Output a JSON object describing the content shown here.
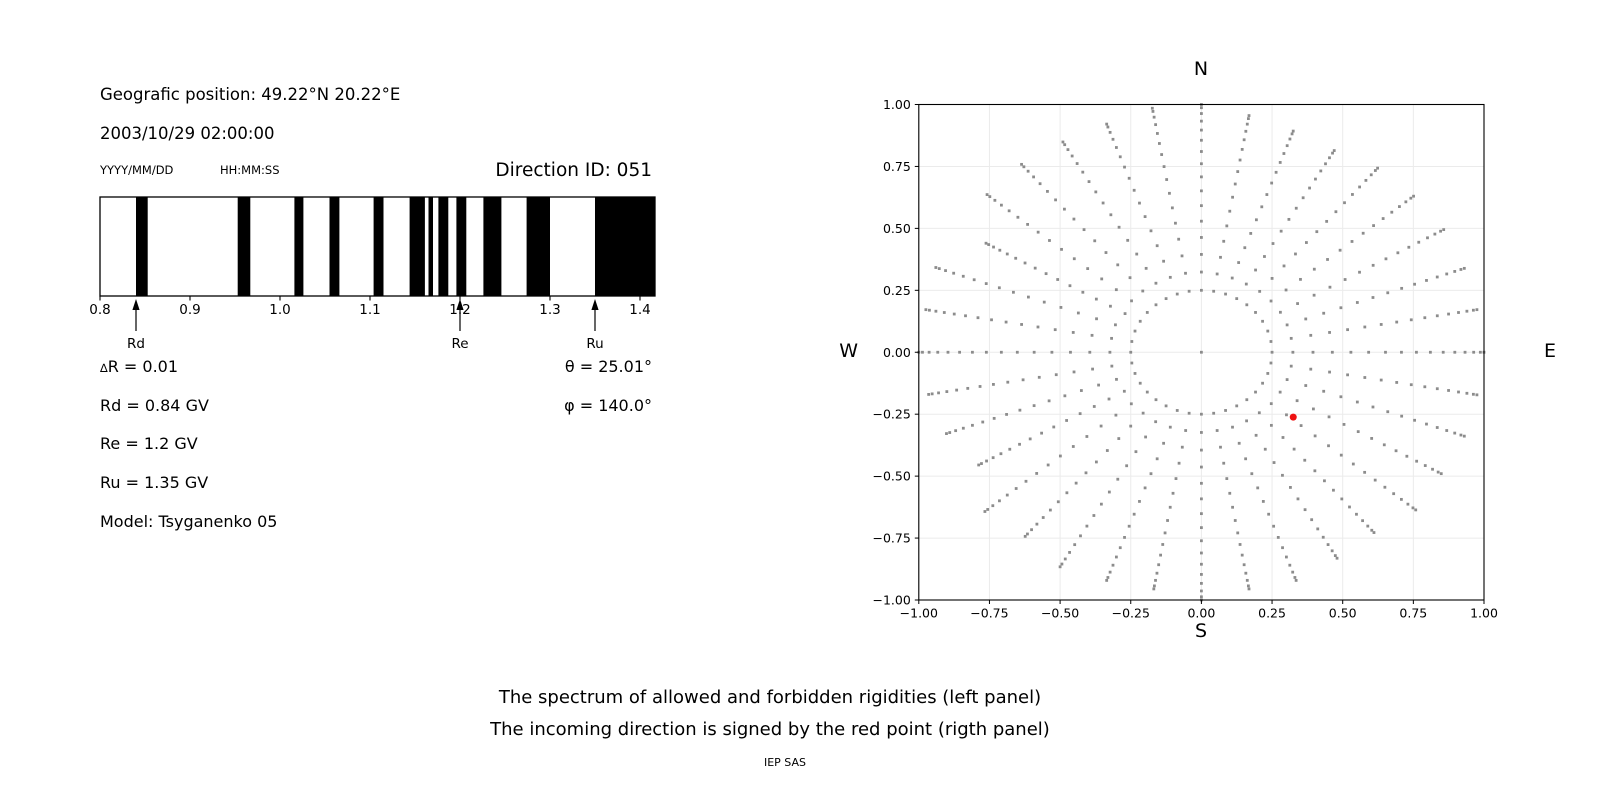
{
  "header": {
    "position_line": "Geografic position: 49.22°N 20.22°E",
    "datetime_line": "2003/10/29 02:00:00",
    "date_format_label": "YYYY/MM/DD",
    "time_format_label": "HH:MM:SS",
    "direction_id": "Direction ID: 051"
  },
  "annotations": {
    "delta_symbol": "∆",
    "delta_rest": "R = 0.01",
    "rd": "Rd = 0.84 GV",
    "re": "Re = 1.2 GV",
    "ru": "Ru = 1.35 GV",
    "model": "Model: Tsyganenko 05",
    "theta": "θ = 25.01°",
    "phi": "φ = 140.0°"
  },
  "caption": {
    "line1": "The spectrum of allowed and forbidden rigidities (left panel)",
    "line2": "The incoming direction is signed by the red point (rigth panel)",
    "footer": "IEP SAS"
  },
  "colors": {
    "marker_gray": "#8c8c8c",
    "red_point": "#ee1111",
    "grid": "#ebebeb",
    "band_black": "#000000",
    "axis_black": "#000000"
  },
  "chart_data": [
    {
      "type": "barcode",
      "title": "Direction ID: 051",
      "xlim": [
        0.8,
        1.41667
      ],
      "xticks": [
        0.8,
        0.9,
        1.0,
        1.1,
        1.2,
        1.3,
        1.4
      ],
      "allowed_bands": [
        [
          0.84,
          0.853
        ],
        [
          0.953,
          0.967
        ],
        [
          1.016,
          1.026
        ],
        [
          1.055,
          1.066
        ],
        [
          1.104,
          1.115
        ],
        [
          1.144,
          1.161
        ],
        [
          1.165,
          1.17
        ],
        [
          1.176,
          1.187
        ],
        [
          1.196,
          1.207
        ],
        [
          1.226,
          1.246
        ],
        [
          1.274,
          1.3
        ],
        [
          1.35,
          1.41667
        ]
      ],
      "markers": [
        {
          "label": "Rd",
          "value": 0.84
        },
        {
          "label": "Re",
          "value": 1.2
        },
        {
          "label": "Ru",
          "value": 1.35
        }
      ]
    },
    {
      "type": "scatter",
      "compass": {
        "top": "N",
        "bottom": "S",
        "left": "W",
        "right": "E"
      },
      "xlim": [
        -1.0,
        1.0
      ],
      "ylim": [
        -1.0,
        1.0
      ],
      "xticks": [
        -1.0,
        -0.75,
        -0.5,
        -0.25,
        0.0,
        0.25,
        0.5,
        0.75,
        1.0
      ],
      "yticks": [
        -1.0,
        -0.75,
        -0.5,
        -0.25,
        0.0,
        0.25,
        0.5,
        0.75,
        1.0
      ],
      "grid": true,
      "spokes": {
        "azimuth_step_deg": 10,
        "inner_radius": 0.25,
        "dots_per_spoke": 16,
        "clump_exponent": 1.5,
        "max_radii": [
          1.0,
          0.97,
          0.95,
          0.94,
          0.97,
          0.98,
          0.99,
          0.99,
          0.99,
          1.0,
          0.99,
          0.99,
          0.98,
          0.99,
          0.95,
          0.96,
          0.98,
          0.97,
          1.0,
          0.97,
          0.98,
          1.0,
          0.97,
          1.0,
          0.91,
          0.96,
          0.98,
          1.0,
          0.99,
          1.0,
          0.88,
          0.99,
          0.99,
          0.98,
          0.98,
          1.0
        ]
      },
      "center_dot": true,
      "red_point": {
        "x": 0.325,
        "y": -0.262,
        "theta_deg": 25.01,
        "phi_deg": 140.0
      }
    }
  ]
}
